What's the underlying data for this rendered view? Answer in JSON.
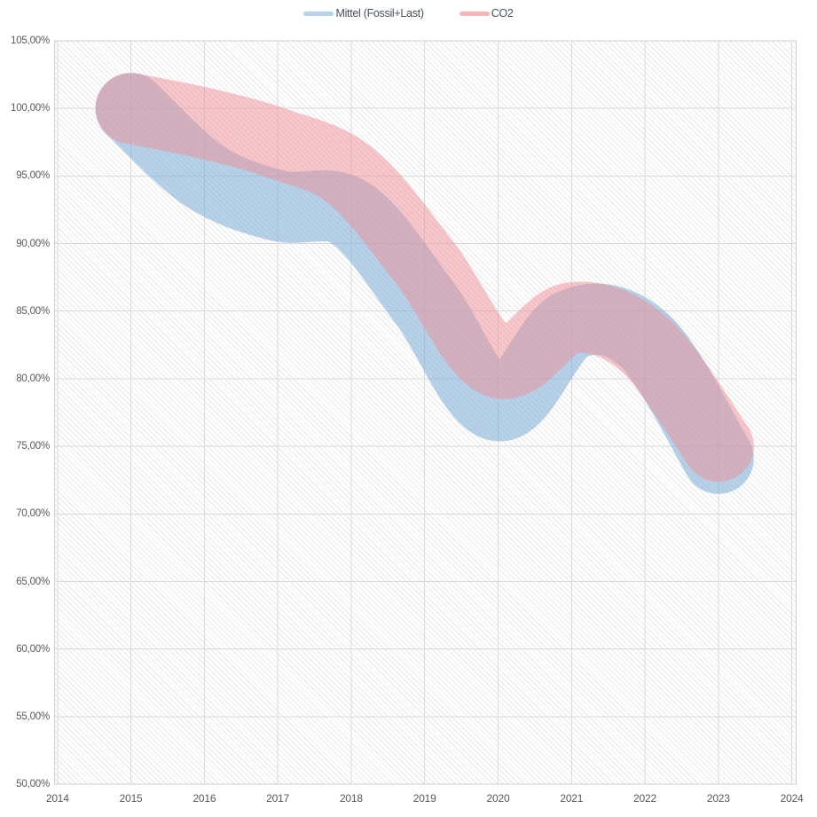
{
  "legend": {
    "items": [
      {
        "label": "Mittel (Fossil+Last)",
        "color": "#b7d3ea"
      },
      {
        "label": "CO2",
        "color": "#f7b5b9"
      }
    ]
  },
  "chart_data": {
    "type": "line",
    "title": "",
    "xlabel": "",
    "ylabel": "",
    "x": [
      2015,
      2016,
      2017,
      2018,
      2019,
      2020,
      2021,
      2022,
      2023
    ],
    "series": [
      {
        "name": "Mittel (Fossil+Last)",
        "color": "#7badd6",
        "opacity": 0.55,
        "values": [
          100,
          95.0,
          92.8,
          92.2,
          85.6,
          78.0,
          84.0,
          82.8,
          74.1
        ]
      },
      {
        "name": "CO2",
        "color": "#ee8e96",
        "opacity": 0.5,
        "values": [
          100,
          98.9,
          97.4,
          95.0,
          88.6,
          81.2,
          84.5,
          82.5,
          75.0
        ]
      }
    ],
    "x_ticks": [
      "2014",
      "2015",
      "2016",
      "2017",
      "2018",
      "2019",
      "2020",
      "2021",
      "2022",
      "2023",
      "2024"
    ],
    "y_ticks": [
      "105,00%",
      "100,00%",
      "95,00%",
      "90,00%",
      "85,00%",
      "80,00%",
      "75,00%",
      "70,00%",
      "65,00%",
      "60,00%",
      "55,00%",
      "50,00%"
    ],
    "x_range": [
      2014,
      2024
    ],
    "y_range": [
      50,
      105
    ],
    "y_tick_step": 5,
    "grid": true,
    "legend_position": "top-center",
    "line_style": "thick-translucent-round",
    "y_tick_format": "percent-comma-decimals"
  },
  "colors": {
    "gridline": "#dadada",
    "plot_border": "#cfcfcf",
    "hatch_line": "#e9e7e7",
    "tick_label": "#595959",
    "legend_label": "#47505a",
    "background": "#ffffff"
  }
}
